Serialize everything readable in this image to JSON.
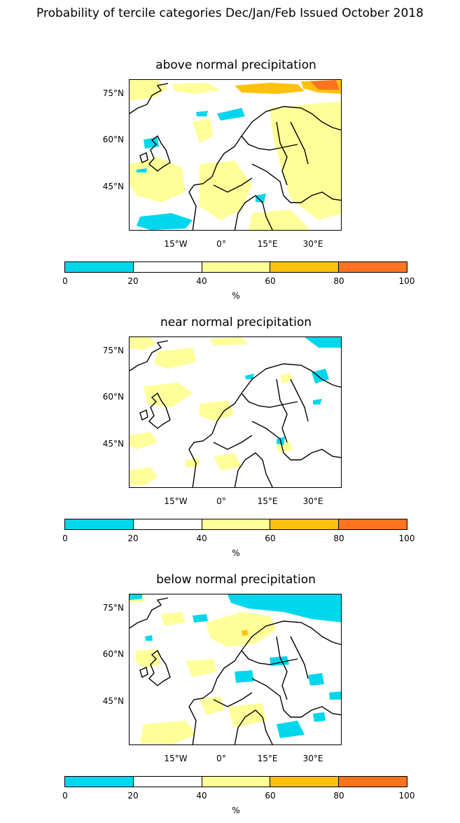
{
  "title": "Probability of tercile categories Dec/Jan/Feb Issued October 2018",
  "colors": {
    "c0_20": "#00d7ec",
    "c20_40": "#ffffff",
    "c40_60": "#ffff99",
    "c60_80": "#ffc20c",
    "c80_100": "#ff7320",
    "coast": "#000000"
  },
  "lat_labels": [
    "75°N",
    "60°N",
    "45°N"
  ],
  "lon_labels": [
    "15°W",
    "0°",
    "15°E",
    "30°E"
  ],
  "colorbar_ticks": [
    "0",
    "20",
    "40",
    "60",
    "80",
    "100"
  ],
  "colorbar_unit": "%",
  "panels": [
    {
      "title": "above normal precipitation"
    },
    {
      "title": "near normal precipitation"
    },
    {
      "title": "below normal precipitation"
    }
  ]
}
